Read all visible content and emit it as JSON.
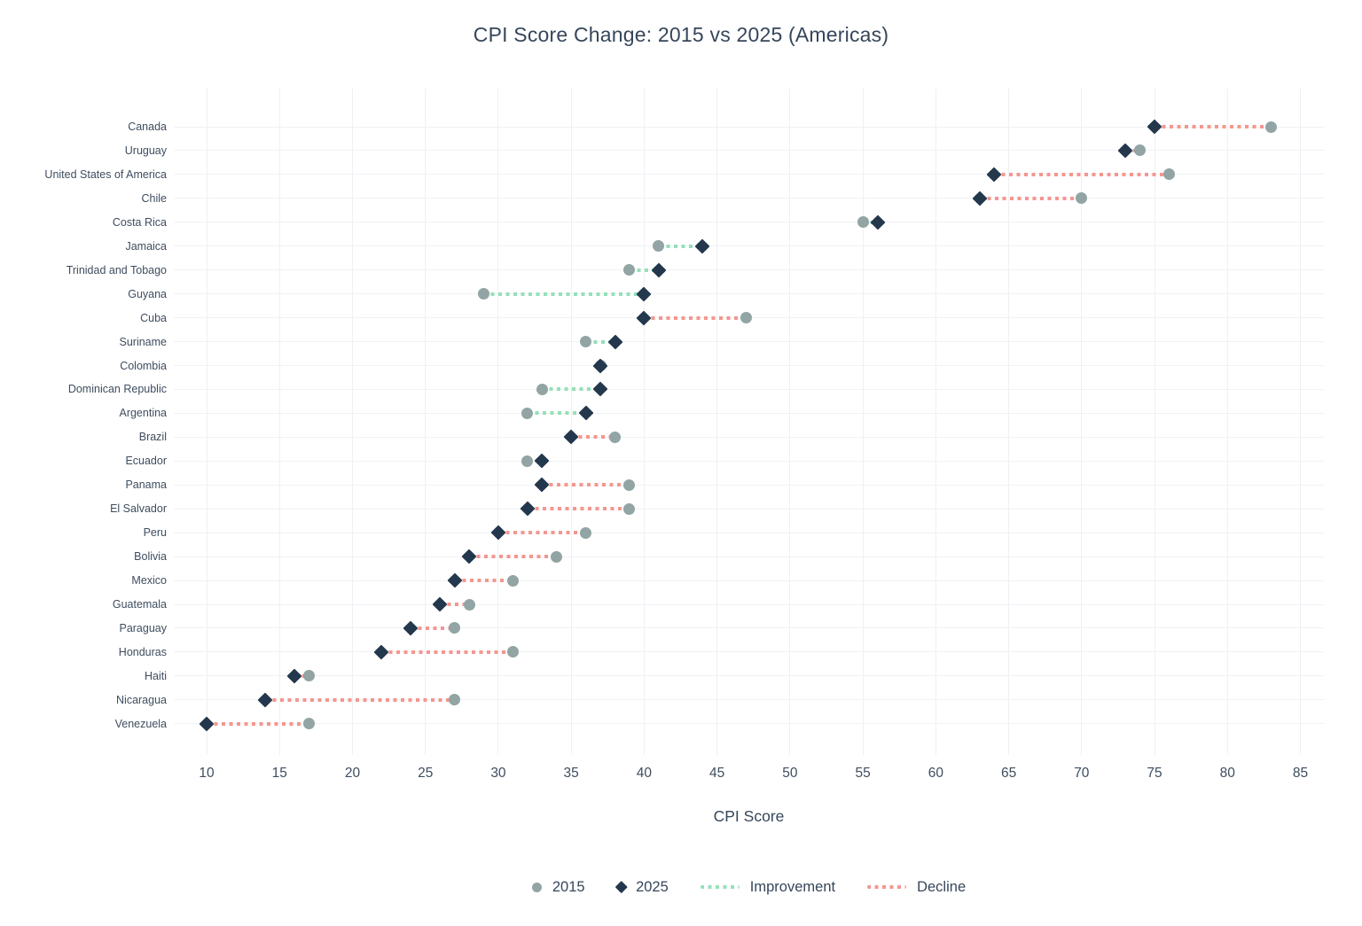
{
  "title": "CPI Score Change: 2015 vs 2025 (Americas)",
  "x_axis": {
    "label": "CPI Score",
    "ticks": [
      10,
      15,
      20,
      25,
      30,
      35,
      40,
      45,
      50,
      55,
      60,
      65,
      70,
      75,
      80,
      85
    ]
  },
  "legend": {
    "items": [
      {
        "id": "2015",
        "label": "2015",
        "marker": "circle"
      },
      {
        "id": "2025",
        "label": "2025",
        "marker": "diamond"
      },
      {
        "id": "improvement",
        "label": "Improvement",
        "marker": "dotted-line-improvement"
      },
      {
        "id": "decline",
        "label": "Decline",
        "marker": "dotted-line-decline"
      }
    ]
  },
  "colors": {
    "dot_2015": "#92a4a4",
    "diamond_2025": "#24384d",
    "improvement": "#95e0b8",
    "decline": "#f4978f",
    "gridline": "#eef0f4",
    "text": "#3e4d5f"
  },
  "chart_data": {
    "type": "scatter",
    "subtype": "horizontal-dumbbell",
    "title": "CPI Score Change: 2015 vs 2025 (Americas)",
    "xlabel": "CPI Score",
    "ylabel": "",
    "xlim": [
      10,
      85
    ],
    "grid": true,
    "legend_position": "bottom",
    "categories": [
      "Canada",
      "Uruguay",
      "United States of America",
      "Chile",
      "Costa Rica",
      "Jamaica",
      "Trinidad and Tobago",
      "Guyana",
      "Cuba",
      "Suriname",
      "Colombia",
      "Dominican Republic",
      "Argentina",
      "Brazil",
      "Ecuador",
      "Panama",
      "El Salvador",
      "Peru",
      "Bolivia",
      "Mexico",
      "Guatemala",
      "Paraguay",
      "Honduras",
      "Haiti",
      "Nicaragua",
      "Venezuela"
    ],
    "series": [
      {
        "name": "2015",
        "marker": "circle",
        "values": [
          83,
          74,
          76,
          70,
          55,
          41,
          39,
          29,
          47,
          36,
          37,
          33,
          32,
          38,
          32,
          39,
          39,
          36,
          34,
          31,
          28,
          27,
          31,
          17,
          27,
          17
        ]
      },
      {
        "name": "2025",
        "marker": "diamond",
        "values": [
          75,
          73,
          64,
          63,
          56,
          44,
          41,
          40,
          40,
          38,
          37,
          37,
          36,
          35,
          33,
          33,
          32,
          30,
          28,
          27,
          26,
          24,
          22,
          16,
          14,
          10
        ]
      }
    ]
  }
}
